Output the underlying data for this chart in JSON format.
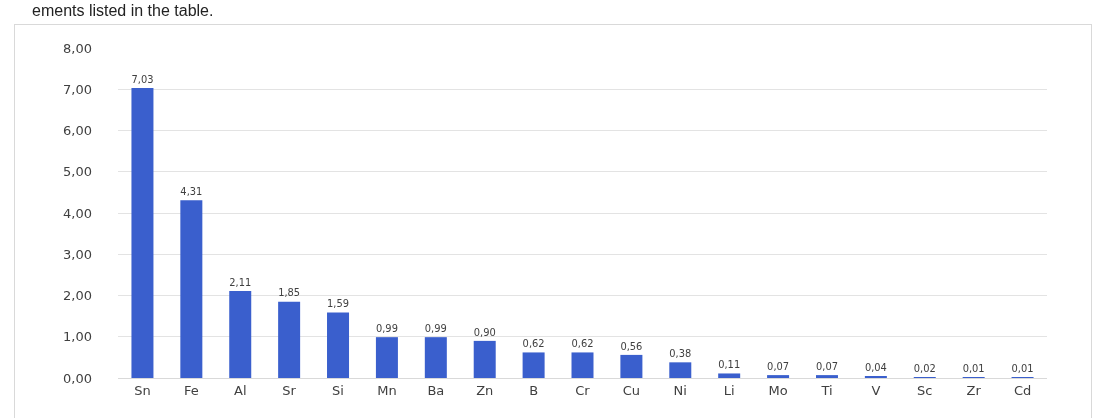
{
  "chart_data": {
    "type": "bar",
    "annotations": [
      "ements listed in the table."
    ],
    "categories": [
      "Sn",
      "Fe",
      "Al",
      "Sr",
      "Si",
      "Mn",
      "Ba",
      "Zn",
      "B",
      "Cr",
      "Cu",
      "Ni",
      "Li",
      "Mo",
      "Ti",
      "V",
      "Sc",
      "Zr",
      "Cd"
    ],
    "values": [
      7.03,
      4.31,
      2.11,
      1.85,
      1.59,
      0.99,
      0.99,
      0.9,
      0.62,
      0.62,
      0.56,
      0.38,
      0.11,
      0.07,
      0.07,
      0.04,
      0.02,
      0.01,
      0.01
    ],
    "value_labels": [
      "7,03",
      "4,31",
      "2,11",
      "1,85",
      "1,59",
      "0,99",
      "0,99",
      "0,90",
      "0,62",
      "0,62",
      "0,56",
      "0,38",
      "0,11",
      "0,07",
      "0,07",
      "0,04",
      "0,02",
      "0,01",
      "0,01"
    ],
    "color": "#3a5fcd",
    "ylim": [
      0,
      8
    ],
    "yticks": [
      {
        "value": 0,
        "label": "0,00"
      },
      {
        "value": 1,
        "label": "1,00"
      },
      {
        "value": 2,
        "label": "2,00"
      },
      {
        "value": 3,
        "label": "3,00"
      },
      {
        "value": 4,
        "label": "4,00"
      },
      {
        "value": 5,
        "label": "5,00"
      },
      {
        "value": 6,
        "label": "6,00"
      },
      {
        "value": 7,
        "label": "7,00"
      },
      {
        "value": 8,
        "label": "8,00"
      }
    ],
    "grid": "y"
  }
}
